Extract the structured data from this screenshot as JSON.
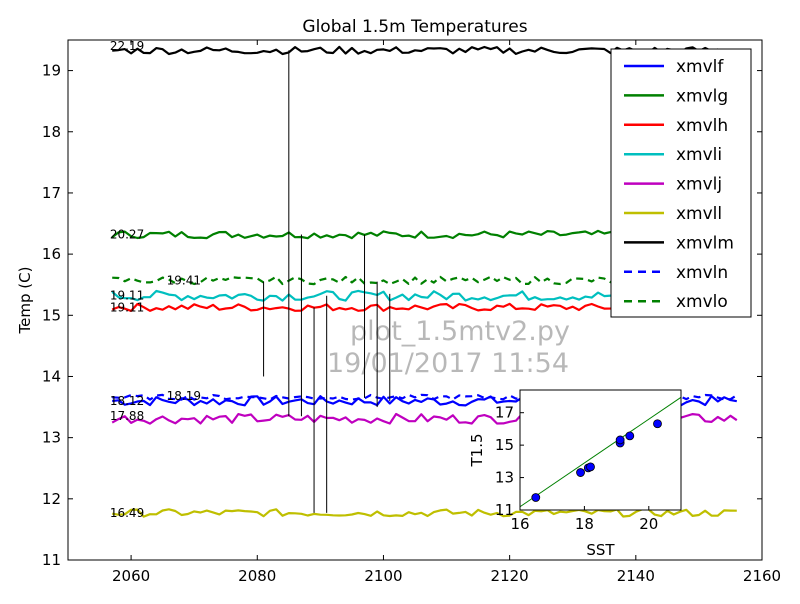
{
  "chart_data": [
    {
      "type": "line",
      "title": "Global 1.5m Temperatures",
      "ylabel": "Temp (C)",
      "xlim": [
        2050,
        2160
      ],
      "ylim": [
        11,
        19.5
      ],
      "x_ticks": [
        "2060",
        "2080",
        "2100",
        "2120",
        "2140",
        "2160"
      ],
      "y_ticks": [
        "11",
        "12",
        "13",
        "14",
        "15",
        "16",
        "17",
        "18",
        "19"
      ],
      "x_range": [
        2057,
        2156
      ],
      "legend_placement": "top-right",
      "series": [
        {
          "name": "xmvlf",
          "color": "#0000ff",
          "dashed": false,
          "mean": 13.6,
          "amplitude": 0.04
        },
        {
          "name": "xmvlg",
          "color": "#008000",
          "dashed": false,
          "mean": 16.32,
          "amplitude": 0.03
        },
        {
          "name": "xmvlh",
          "color": "#ff0000",
          "dashed": false,
          "mean": 15.13,
          "amplitude": 0.03
        },
        {
          "name": "xmvli",
          "color": "#00bfbf",
          "dashed": false,
          "mean": 15.32,
          "amplitude": 0.04
        },
        {
          "name": "xmvlj",
          "color": "#bf00bf",
          "dashed": false,
          "mean": 13.31,
          "amplitude": 0.04
        },
        {
          "name": "xmvll",
          "color": "#bfbf00",
          "dashed": false,
          "mean": 11.77,
          "amplitude": 0.03
        },
        {
          "name": "xmvlm",
          "color": "#000000",
          "dashed": false,
          "mean": 19.33,
          "amplitude": 0.03
        },
        {
          "name": "xmvln",
          "color": "#0000ff",
          "dashed": true,
          "mean": 13.66,
          "amplitude": 0.02
        },
        {
          "name": "xmvlo",
          "color": "#008000",
          "dashed": true,
          "mean": 15.57,
          "amplitude": 0.03
        }
      ],
      "series_labels": [
        {
          "text": "22.19",
          "x": 2056,
          "y": 19.4
        },
        {
          "text": "20.27",
          "x": 2056,
          "y": 16.32
        },
        {
          "text": "19.41",
          "x": 2065,
          "y": 15.57
        },
        {
          "text": "19.11",
          "x": 2056,
          "y": 15.32
        },
        {
          "text": "19.11",
          "x": 2056,
          "y": 15.13
        },
        {
          "text": "18.19",
          "x": 2065,
          "y": 13.68
        },
        {
          "text": "18.12",
          "x": 2056,
          "y": 13.6
        },
        {
          "text": "17.88",
          "x": 2056,
          "y": 13.35
        },
        {
          "text": "16.49",
          "x": 2056,
          "y": 11.77
        }
      ],
      "event_lines": [
        {
          "x": 2081,
          "y1": 14.0,
          "y2": 15.55
        },
        {
          "x": 2085,
          "y1": 13.35,
          "y2": 19.33
        },
        {
          "x": 2087,
          "y1": 13.35,
          "y2": 16.32
        },
        {
          "x": 2089,
          "y1": 11.77,
          "y2": 15.13
        },
        {
          "x": 2091,
          "y1": 11.77,
          "y2": 15.32
        },
        {
          "x": 2097,
          "y1": 13.65,
          "y2": 16.32
        },
        {
          "x": 2099,
          "y1": 13.5,
          "y2": 15.55
        },
        {
          "x": 2101,
          "y1": 13.6,
          "y2": 15.35
        }
      ],
      "watermark": [
        "plot_1.5mtv2.py",
        "19/01/2017 11:54"
      ]
    },
    {
      "type": "scatter",
      "xlabel": "SST",
      "ylabel": "T1.5",
      "xlim": [
        16,
        21
      ],
      "ylim": [
        11,
        18.4
      ],
      "x_ticks": [
        "16",
        "18",
        "20"
      ],
      "y_ticks": [
        "11",
        "13",
        "15",
        "17"
      ],
      "points": [
        {
          "x": 16.49,
          "y": 11.77
        },
        {
          "x": 17.88,
          "y": 13.31
        },
        {
          "x": 18.12,
          "y": 13.6
        },
        {
          "x": 18.19,
          "y": 13.66
        },
        {
          "x": 19.11,
          "y": 15.13
        },
        {
          "x": 19.11,
          "y": 15.32
        },
        {
          "x": 19.41,
          "y": 15.57
        },
        {
          "x": 20.27,
          "y": 16.32
        }
      ],
      "fit_line": {
        "color": "#008000",
        "x": [
          16,
          21
        ],
        "y": [
          11.2,
          17.95
        ]
      },
      "point_color": "#0000ff"
    }
  ]
}
